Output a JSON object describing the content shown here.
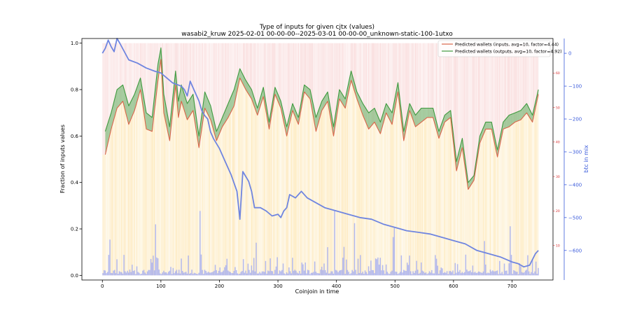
{
  "chart_data": {
    "type": "line",
    "title": "Type of inputs for given cjtx (values)",
    "subtitle": "wasabi2_kruw 2025-02-01 00-00-00--2025-03-01 00-00-00_unknown-static-100-1utxo",
    "xlabel": "Coinjoin in time",
    "ylabel": "Fraction of inputs values",
    "y2label": "btc in mix",
    "xlim": [
      -35,
      770
    ],
    "ylim": [
      -0.02,
      1.02
    ],
    "y2lim": [
      -690,
      45
    ],
    "y3lim": [
      0,
      70
    ],
    "x_ticks": [
      0,
      100,
      200,
      300,
      400,
      500,
      600,
      700
    ],
    "y_ticks": [
      0.0,
      0.2,
      0.4,
      0.6,
      0.8,
      1.0
    ],
    "y2_ticks": [
      0,
      -100,
      -200,
      -300,
      -400,
      -500,
      -600
    ],
    "y3_ticks": [
      10,
      20,
      30,
      40,
      50,
      60
    ],
    "grid": false,
    "legend_position": "top-right",
    "colors": {
      "inputs_line": "#d9664a",
      "outputs_line": "#3f9a3f",
      "fill": "#5fae5f",
      "btc_line": "#6f85e0",
      "bars_blue": "#9aa4f2",
      "bars_orange": "#fde2a6",
      "bars_pink": "#f6c9c9",
      "axis_right": "#3b5bdb",
      "axis_red": "#d62728"
    },
    "series": [
      {
        "name": "Predicted wallets (inputs, avg=10, factor=4.44)",
        "x": [
          5,
          15,
          25,
          35,
          45,
          55,
          65,
          75,
          85,
          95,
          100,
          105,
          115,
          125,
          130,
          135,
          145,
          155,
          165,
          175,
          185,
          195,
          205,
          215,
          225,
          235,
          245,
          255,
          265,
          275,
          285,
          295,
          305,
          315,
          325,
          335,
          345,
          355,
          365,
          375,
          385,
          395,
          405,
          415,
          425,
          435,
          445,
          455,
          465,
          475,
          485,
          495,
          505,
          515,
          525,
          535,
          545,
          555,
          565,
          575,
          585,
          595,
          605,
          615,
          625,
          635,
          645,
          655,
          665,
          675,
          685,
          695,
          705,
          715,
          725,
          735,
          745
        ],
        "values": [
          0.52,
          0.63,
          0.72,
          0.75,
          0.65,
          0.71,
          0.8,
          0.63,
          0.62,
          0.84,
          0.93,
          0.7,
          0.58,
          0.82,
          0.68,
          0.75,
          0.67,
          0.71,
          0.55,
          0.72,
          0.67,
          0.58,
          0.64,
          0.68,
          0.73,
          0.85,
          0.8,
          0.76,
          0.69,
          0.77,
          0.63,
          0.78,
          0.72,
          0.6,
          0.71,
          0.65,
          0.79,
          0.76,
          0.62,
          0.71,
          0.75,
          0.6,
          0.76,
          0.72,
          0.84,
          0.76,
          0.69,
          0.63,
          0.66,
          0.61,
          0.7,
          0.65,
          0.79,
          0.58,
          0.71,
          0.64,
          0.66,
          0.68,
          0.68,
          0.59,
          0.66,
          0.68,
          0.45,
          0.55,
          0.37,
          0.41,
          0.57,
          0.63,
          0.63,
          0.51,
          0.63,
          0.64,
          0.66,
          0.67,
          0.7,
          0.66,
          0.78
        ]
      },
      {
        "name": "Predicted wallets (outputs, avg=10, factor=4.92)",
        "x": [
          5,
          15,
          25,
          35,
          45,
          55,
          65,
          75,
          85,
          95,
          100,
          105,
          115,
          125,
          130,
          135,
          145,
          155,
          165,
          175,
          185,
          195,
          205,
          215,
          225,
          235,
          245,
          255,
          265,
          275,
          285,
          295,
          305,
          315,
          325,
          335,
          345,
          355,
          365,
          375,
          385,
          395,
          405,
          415,
          425,
          435,
          445,
          455,
          465,
          475,
          485,
          495,
          505,
          515,
          525,
          535,
          545,
          555,
          565,
          575,
          585,
          595,
          605,
          615,
          625,
          635,
          645,
          655,
          665,
          675,
          685,
          695,
          705,
          715,
          725,
          735,
          745
        ],
        "values": [
          0.62,
          0.7,
          0.8,
          0.82,
          0.73,
          0.78,
          0.85,
          0.7,
          0.68,
          0.91,
          0.98,
          0.78,
          0.64,
          0.88,
          0.75,
          0.82,
          0.74,
          0.78,
          0.6,
          0.79,
          0.73,
          0.62,
          0.68,
          0.74,
          0.8,
          0.89,
          0.84,
          0.8,
          0.72,
          0.81,
          0.66,
          0.81,
          0.75,
          0.64,
          0.74,
          0.68,
          0.82,
          0.8,
          0.68,
          0.75,
          0.79,
          0.64,
          0.8,
          0.76,
          0.88,
          0.79,
          0.74,
          0.7,
          0.72,
          0.66,
          0.74,
          0.7,
          0.83,
          0.62,
          0.74,
          0.69,
          0.72,
          0.72,
          0.72,
          0.62,
          0.69,
          0.71,
          0.49,
          0.59,
          0.4,
          0.43,
          0.6,
          0.66,
          0.66,
          0.54,
          0.66,
          0.69,
          0.7,
          0.71,
          0.74,
          0.69,
          0.8
        ]
      },
      {
        "name": "btc in mix",
        "axis": "right",
        "x": [
          0,
          5,
          10,
          15,
          20,
          25,
          30,
          45,
          60,
          75,
          90,
          100,
          110,
          120,
          135,
          140,
          145,
          150,
          155,
          165,
          170,
          175,
          180,
          185,
          190,
          200,
          210,
          220,
          230,
          235,
          240,
          245,
          250,
          255,
          260,
          270,
          280,
          290,
          300,
          305,
          310,
          315,
          320,
          330,
          340,
          350,
          360,
          380,
          400,
          420,
          440,
          460,
          480,
          500,
          520,
          540,
          560,
          580,
          600,
          620,
          640,
          660,
          680,
          700,
          710,
          720,
          730,
          740,
          745
        ],
        "values": [
          0,
          15,
          40,
          20,
          5,
          45,
          30,
          -20,
          -30,
          -45,
          -55,
          -60,
          -75,
          -90,
          -100,
          -110,
          -130,
          -85,
          -105,
          -145,
          -175,
          -190,
          -200,
          -240,
          -260,
          -290,
          -330,
          -370,
          -420,
          -505,
          -360,
          -375,
          -390,
          -420,
          -470,
          -470,
          -480,
          -495,
          -490,
          -500,
          -480,
          -470,
          -430,
          -440,
          -420,
          -440,
          -450,
          -470,
          -480,
          -490,
          -500,
          -505,
          -520,
          -530,
          -540,
          -545,
          -550,
          -560,
          -570,
          -580,
          -600,
          -610,
          -620,
          -635,
          -640,
          -650,
          -645,
          -610,
          -600
        ]
      }
    ]
  }
}
